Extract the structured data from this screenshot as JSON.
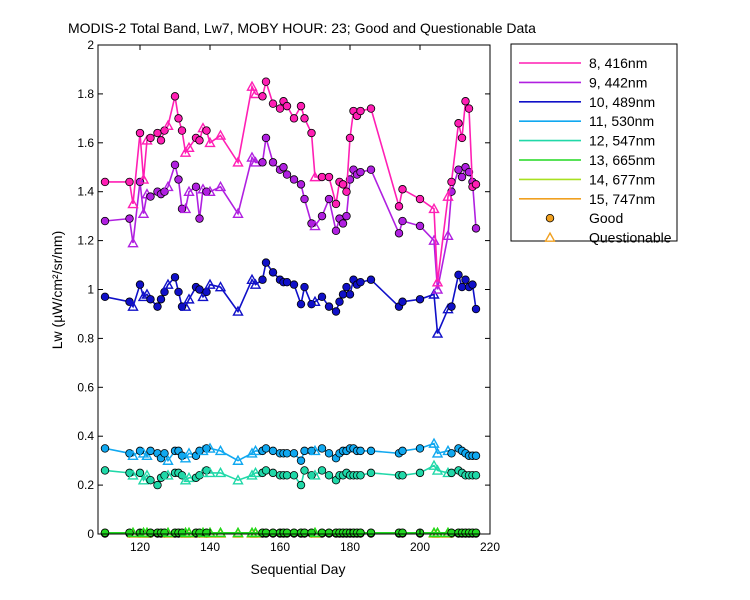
{
  "chart_data": {
    "type": "line",
    "title": "MODIS-2 Total Band,  Lw7, MOBY HOUR: 23;  Good and Questionable Data",
    "xlabel": "Sequential Day",
    "ylabel": "Lw (µW/cm²/sr/nm)",
    "xlim": [
      108,
      220
    ],
    "ylim": [
      0,
      2
    ],
    "xticks": [
      "120",
      "140",
      "160",
      "180",
      "200",
      "220"
    ],
    "yticks": [
      "0",
      "0.2",
      "0.4",
      "0.6",
      "0.8",
      "1",
      "1.2",
      "1.4",
      "1.6",
      "1.8",
      "2"
    ],
    "grid": false,
    "legend_position": "outside-right",
    "x": [
      110,
      117,
      118,
      120,
      121,
      122,
      123,
      125,
      126,
      127,
      128,
      130,
      131,
      132,
      133,
      134,
      136,
      137,
      138,
      139,
      140,
      143,
      148,
      152,
      153,
      155,
      156,
      158,
      160,
      161,
      162,
      164,
      166,
      167,
      169,
      170,
      172,
      174,
      176,
      177,
      178,
      179,
      180,
      181,
      182,
      183,
      186,
      194,
      195,
      200,
      204,
      205,
      208,
      209,
      211,
      212,
      213,
      214,
      215,
      216
    ],
    "status": [
      "G",
      "G",
      "Q",
      "G",
      "Q",
      "Q",
      "G",
      "G",
      "G",
      "G",
      "Q",
      "G",
      "G",
      "G",
      "Q",
      "Q",
      "G",
      "G",
      "Q",
      "G",
      "Q",
      "Q",
      "Q",
      "Q",
      "Q",
      "G",
      "G",
      "G",
      "G",
      "G",
      "G",
      "G",
      "G",
      "G",
      "G",
      "Q",
      "G",
      "G",
      "G",
      "G",
      "G",
      "G",
      "G",
      "G",
      "G",
      "G",
      "G",
      "G",
      "G",
      "G",
      "Q",
      "Q",
      "Q",
      "G",
      "G",
      "G",
      "G",
      "G",
      "G",
      "G"
    ],
    "series": [
      {
        "name": "8, 416nm",
        "color": "#ff1fb4",
        "values": [
          1.44,
          1.44,
          1.35,
          1.64,
          1.45,
          1.61,
          1.62,
          1.64,
          1.61,
          1.65,
          1.67,
          1.79,
          1.7,
          1.65,
          1.56,
          1.58,
          1.62,
          1.61,
          1.66,
          1.65,
          1.6,
          1.63,
          1.52,
          1.83,
          1.8,
          1.79,
          1.85,
          1.76,
          1.74,
          1.77,
          1.75,
          1.7,
          1.75,
          1.7,
          1.64,
          1.46,
          1.46,
          1.46,
          1.35,
          1.44,
          1.43,
          1.4,
          1.62,
          1.73,
          1.71,
          1.73,
          1.74,
          1.34,
          1.41,
          1.37,
          1.33,
          1.03,
          1.38,
          1.44,
          1.68,
          1.62,
          1.77,
          1.74,
          1.42,
          1.43
        ]
      },
      {
        "name": "9, 442nm",
        "color": "#b020e0",
        "values": [
          1.28,
          1.29,
          1.19,
          1.44,
          1.31,
          1.39,
          1.38,
          1.4,
          1.39,
          1.4,
          1.42,
          1.51,
          1.45,
          1.33,
          1.33,
          1.4,
          1.42,
          1.29,
          1.41,
          1.4,
          1.4,
          1.42,
          1.31,
          1.54,
          1.52,
          1.52,
          1.62,
          1.52,
          1.49,
          1.5,
          1.47,
          1.45,
          1.43,
          1.37,
          1.27,
          1.26,
          1.3,
          1.37,
          1.24,
          1.29,
          1.27,
          1.3,
          1.45,
          1.49,
          1.47,
          1.48,
          1.49,
          1.23,
          1.28,
          1.26,
          1.2,
          1.0,
          1.22,
          1.4,
          1.49,
          1.46,
          1.5,
          1.48,
          1.44,
          1.25
        ]
      },
      {
        "name": "10, 489nm",
        "color": "#1010c8",
        "values": [
          0.97,
          0.95,
          0.93,
          1.02,
          0.97,
          0.98,
          0.96,
          0.93,
          0.96,
          0.99,
          1.02,
          1.05,
          0.99,
          0.93,
          0.93,
          0.96,
          1.01,
          1.0,
          0.97,
          0.99,
          1.02,
          1.01,
          0.91,
          1.04,
          1.02,
          1.04,
          1.11,
          1.07,
          1.04,
          1.03,
          1.03,
          1.02,
          0.94,
          1.01,
          0.94,
          0.95,
          0.97,
          0.93,
          0.91,
          0.95,
          0.98,
          1.01,
          0.98,
          1.04,
          1.02,
          1.03,
          1.04,
          0.93,
          0.95,
          0.96,
          0.98,
          0.82,
          0.92,
          0.93,
          1.06,
          1.01,
          1.04,
          1.01,
          1.02,
          0.92
        ]
      },
      {
        "name": "11, 530nm",
        "color": "#10a8f0",
        "values": [
          0.35,
          0.33,
          0.32,
          0.34,
          0.33,
          0.32,
          0.34,
          0.33,
          0.31,
          0.33,
          0.3,
          0.34,
          0.34,
          0.32,
          0.31,
          0.33,
          0.32,
          0.34,
          0.34,
          0.35,
          0.35,
          0.34,
          0.3,
          0.33,
          0.34,
          0.34,
          0.35,
          0.34,
          0.33,
          0.33,
          0.33,
          0.33,
          0.3,
          0.34,
          0.34,
          0.34,
          0.35,
          0.33,
          0.31,
          0.33,
          0.34,
          0.34,
          0.35,
          0.35,
          0.34,
          0.34,
          0.34,
          0.33,
          0.34,
          0.35,
          0.37,
          0.33,
          0.34,
          0.33,
          0.35,
          0.34,
          0.33,
          0.32,
          0.32,
          0.32
        ]
      },
      {
        "name": "12, 547nm",
        "color": "#20d8a8",
        "values": [
          0.26,
          0.25,
          0.24,
          0.25,
          0.22,
          0.24,
          0.22,
          0.2,
          0.23,
          0.24,
          0.24,
          0.25,
          0.25,
          0.24,
          0.22,
          0.23,
          0.23,
          0.24,
          0.25,
          0.26,
          0.25,
          0.25,
          0.22,
          0.24,
          0.25,
          0.25,
          0.26,
          0.25,
          0.24,
          0.24,
          0.24,
          0.24,
          0.2,
          0.26,
          0.24,
          0.24,
          0.26,
          0.24,
          0.22,
          0.24,
          0.24,
          0.25,
          0.24,
          0.24,
          0.24,
          0.24,
          0.25,
          0.24,
          0.24,
          0.25,
          0.28,
          0.26,
          0.25,
          0.25,
          0.26,
          0.25,
          0.24,
          0.24,
          0.24,
          0.24
        ]
      },
      {
        "name": "13, 665nm",
        "color": "#20d820",
        "values": [
          0.005,
          0.005,
          0.005,
          0.005,
          0.005,
          0.005,
          0.005,
          0.005,
          0.005,
          0.005,
          0.005,
          0.005,
          0.005,
          0.005,
          0.005,
          0.005,
          0.005,
          0.005,
          0.005,
          0.005,
          0.005,
          0.005,
          0.005,
          0.005,
          0.005,
          0.005,
          0.005,
          0.005,
          0.005,
          0.005,
          0.005,
          0.005,
          0.005,
          0.005,
          0.005,
          0.005,
          0.005,
          0.005,
          0.005,
          0.005,
          0.005,
          0.005,
          0.005,
          0.005,
          0.005,
          0.005,
          0.005,
          0.005,
          0.005,
          0.005,
          0.005,
          0.005,
          0.005,
          0.005,
          0.005,
          0.005,
          0.005,
          0.005,
          0.005,
          0.005
        ]
      },
      {
        "name": "14, 677nm",
        "color": "#a8e020",
        "values": [
          0.005,
          0.005,
          0.005,
          0.005,
          0.005,
          0.005,
          0.005,
          0.005,
          0.005,
          0.005,
          0.005,
          0.005,
          0.005,
          0.005,
          0.005,
          0.005,
          0.005,
          0.005,
          0.005,
          0.005,
          0.005,
          0.005,
          0.005,
          0.005,
          0.005,
          0.005,
          0.005,
          0.005,
          0.005,
          0.005,
          0.005,
          0.005,
          0.005,
          0.005,
          0.005,
          0.005,
          0.005,
          0.005,
          0.005,
          0.005,
          0.005,
          0.005,
          0.005,
          0.005,
          0.005,
          0.005,
          0.005,
          0.005,
          0.005,
          0.005,
          0.005,
          0.005,
          0.005,
          0.005,
          0.005,
          0.005,
          0.005,
          0.005,
          0.005,
          0.005
        ]
      },
      {
        "name": "15, 747nm",
        "color": "#f0a020",
        "values": [
          0.002,
          0.002,
          0.002,
          0.002,
          0.002,
          0.002,
          0.002,
          0.002,
          0.002,
          0.002,
          0.002,
          0.002,
          0.002,
          0.002,
          0.002,
          0.002,
          0.002,
          0.002,
          0.002,
          0.002,
          0.002,
          0.002,
          0.002,
          0.002,
          0.002,
          0.002,
          0.002,
          0.002,
          0.002,
          0.002,
          0.002,
          0.002,
          0.002,
          0.002,
          0.002,
          0.002,
          0.002,
          0.002,
          0.002,
          0.002,
          0.002,
          0.002,
          0.002,
          0.002,
          0.002,
          0.002,
          0.002,
          0.002,
          0.002,
          0.002,
          0.002,
          0.002,
          0.002,
          0.002,
          0.002,
          0.002,
          0.002,
          0.002,
          0.002,
          0.002
        ]
      }
    ],
    "marker_legend": [
      {
        "label": "Good",
        "marker": "circle",
        "color": "#f0a020"
      },
      {
        "label": "Questionable",
        "marker": "triangle",
        "color": "#f0a020"
      }
    ]
  }
}
